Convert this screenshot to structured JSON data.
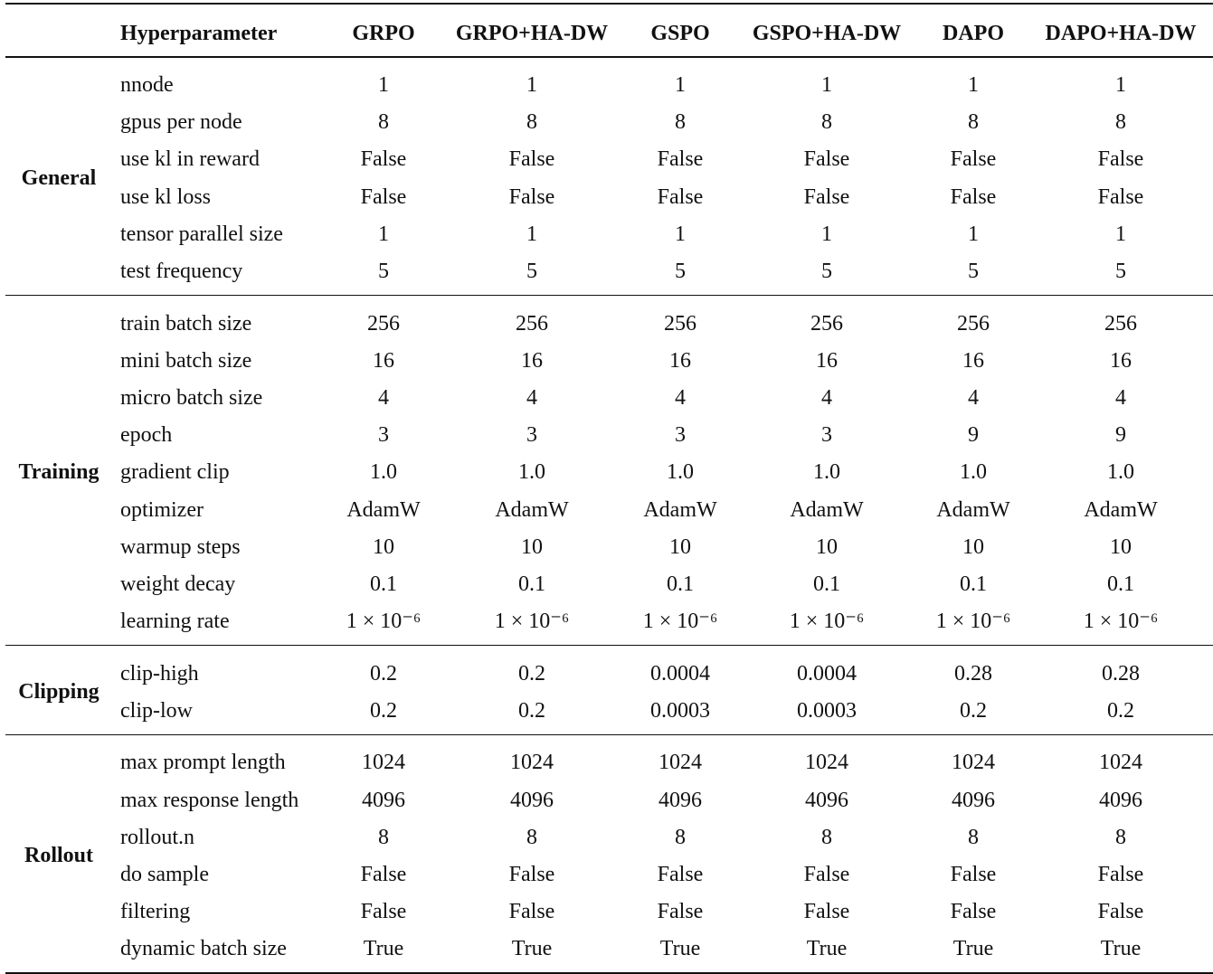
{
  "table": {
    "header": {
      "columns": [
        "Hyperparameter",
        "GRPO",
        "GRPO+HA-DW",
        "GSPO",
        "GSPO+HA-DW",
        "DAPO",
        "DAPO+HA-DW"
      ]
    },
    "groups": [
      {
        "name": "General",
        "rows": [
          {
            "param": "nnode",
            "values": [
              "1",
              "1",
              "1",
              "1",
              "1",
              "1"
            ]
          },
          {
            "param": "gpus per node",
            "values": [
              "8",
              "8",
              "8",
              "8",
              "8",
              "8"
            ]
          },
          {
            "param": "use kl in reward",
            "values": [
              "False",
              "False",
              "False",
              "False",
              "False",
              "False"
            ]
          },
          {
            "param": "use kl loss",
            "values": [
              "False",
              "False",
              "False",
              "False",
              "False",
              "False"
            ]
          },
          {
            "param": "tensor parallel size",
            "values": [
              "1",
              "1",
              "1",
              "1",
              "1",
              "1"
            ]
          },
          {
            "param": "test frequency",
            "values": [
              "5",
              "5",
              "5",
              "5",
              "5",
              "5"
            ]
          }
        ]
      },
      {
        "name": "Training",
        "rows": [
          {
            "param": "train batch size",
            "values": [
              "256",
              "256",
              "256",
              "256",
              "256",
              "256"
            ]
          },
          {
            "param": "mini batch size",
            "values": [
              "16",
              "16",
              "16",
              "16",
              "16",
              "16"
            ]
          },
          {
            "param": "micro batch size",
            "values": [
              "4",
              "4",
              "4",
              "4",
              "4",
              "4"
            ]
          },
          {
            "param": "epoch",
            "values": [
              "3",
              "3",
              "3",
              "3",
              "9",
              "9"
            ]
          },
          {
            "param": "gradient clip",
            "values": [
              "1.0",
              "1.0",
              "1.0",
              "1.0",
              "1.0",
              "1.0"
            ]
          },
          {
            "param": "optimizer",
            "values": [
              "AdamW",
              "AdamW",
              "AdamW",
              "AdamW",
              "AdamW",
              "AdamW"
            ]
          },
          {
            "param": "warmup steps",
            "values": [
              "10",
              "10",
              "10",
              "10",
              "10",
              "10"
            ]
          },
          {
            "param": "weight decay",
            "values": [
              "0.1",
              "0.1",
              "0.1",
              "0.1",
              "0.1",
              "0.1"
            ]
          },
          {
            "param": "learning rate",
            "values": [
              "1 × 10⁻⁶",
              "1 × 10⁻⁶",
              "1 × 10⁻⁶",
              "1 × 10⁻⁶",
              "1 × 10⁻⁶",
              "1 × 10⁻⁶"
            ]
          }
        ]
      },
      {
        "name": "Clipping",
        "rows": [
          {
            "param": "clip-high",
            "values": [
              "0.2",
              "0.2",
              "0.0004",
              "0.0004",
              "0.28",
              "0.28"
            ]
          },
          {
            "param": "clip-low",
            "values": [
              "0.2",
              "0.2",
              "0.0003",
              "0.0003",
              "0.2",
              "0.2"
            ]
          }
        ]
      },
      {
        "name": "Rollout",
        "rows": [
          {
            "param": "max prompt length",
            "values": [
              "1024",
              "1024",
              "1024",
              "1024",
              "1024",
              "1024"
            ]
          },
          {
            "param": "max response length",
            "values": [
              "4096",
              "4096",
              "4096",
              "4096",
              "4096",
              "4096"
            ]
          },
          {
            "param": "rollout.n",
            "values": [
              "8",
              "8",
              "8",
              "8",
              "8",
              "8"
            ]
          },
          {
            "param": "do sample",
            "values": [
              "False",
              "False",
              "False",
              "False",
              "False",
              "False"
            ]
          },
          {
            "param": "filtering",
            "values": [
              "False",
              "False",
              "False",
              "False",
              "False",
              "False"
            ]
          },
          {
            "param": "dynamic batch size",
            "values": [
              "True",
              "True",
              "True",
              "True",
              "True",
              "True"
            ]
          }
        ]
      }
    ]
  }
}
